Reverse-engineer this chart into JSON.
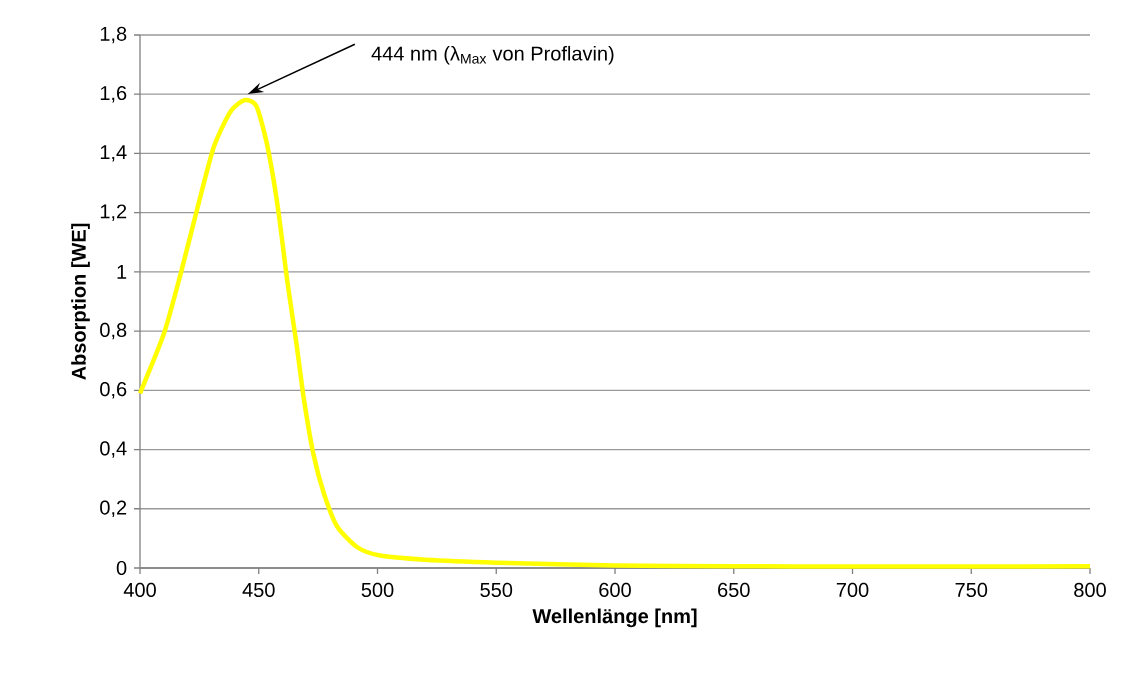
{
  "chart_data": {
    "type": "line",
    "xlabel": "Wellenlänge [nm]",
    "ylabel": "Absorption [WE]",
    "x": [
      400,
      410,
      417,
      424,
      431,
      438,
      444,
      449,
      453.5,
      458,
      462,
      466,
      469,
      473,
      477.5,
      483,
      491.5,
      501,
      520,
      550,
      600,
      650,
      700,
      750,
      800
    ],
    "series": [
      {
        "color": "#ffff00",
        "values": [
          0.59,
          0.79,
          0.99,
          1.21,
          1.42,
          1.54,
          1.58,
          1.56,
          1.43,
          1.22,
          0.97,
          0.75,
          0.57,
          0.385,
          0.25,
          0.14,
          0.07,
          0.042,
          0.028,
          0.018,
          0.008,
          0.006,
          0.005,
          0.005,
          0.006
        ]
      }
    ],
    "xlim": [
      400,
      800
    ],
    "ylim": [
      0,
      1.8
    ],
    "xticks": [
      400,
      450,
      500,
      550,
      600,
      650,
      700,
      750,
      800
    ],
    "yticks": [
      0,
      {
        "value": 0.2,
        "label": "0,2"
      },
      {
        "value": 0.4,
        "label": "0,4"
      },
      {
        "value": 0.6,
        "label": "0,6"
      },
      {
        "value": 0.8,
        "label": "0,8"
      },
      1,
      {
        "value": 1.2,
        "label": "1,2"
      },
      {
        "value": 1.4,
        "label": "1,4"
      },
      {
        "value": 1.6,
        "label": "1,6"
      },
      {
        "value": 1.8,
        "label": "1,8"
      }
    ],
    "grid": "y",
    "marker": "none",
    "line_style": "solid",
    "annotations": [
      "444 nm (λ$_{Max}$ von Proflavin)"
    ]
  }
}
